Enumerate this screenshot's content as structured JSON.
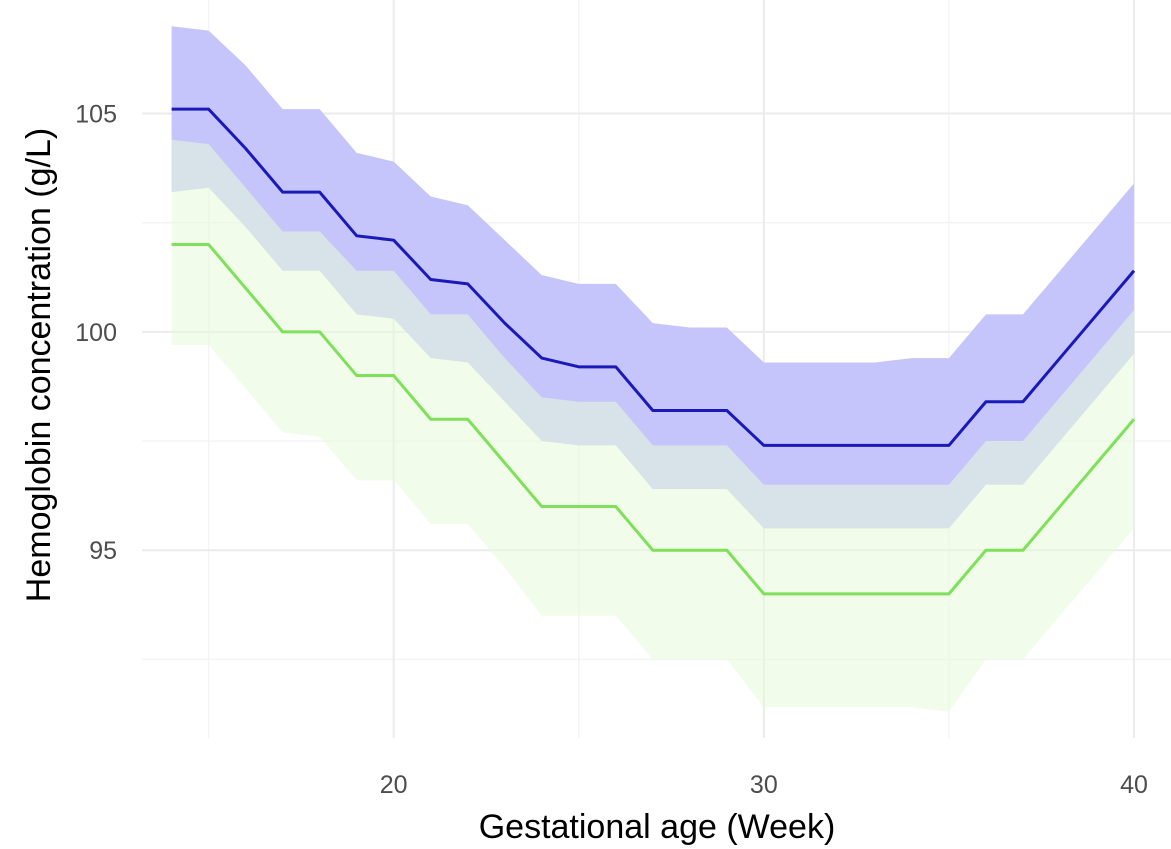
{
  "chart_data": {
    "type": "line",
    "title": "",
    "xlabel": "Gestational age (Week)",
    "ylabel": "Hemoglobin concentration (g/L)",
    "xlim": [
      13.2,
      41
    ],
    "ylim": [
      90.7,
      107.6
    ],
    "x_ticks": [
      20,
      30,
      40
    ],
    "y_ticks": [
      95,
      100,
      105
    ],
    "x_minor": [
      15,
      25,
      35
    ],
    "y_minor": [
      92.5,
      97.5,
      102.5
    ],
    "grid": true,
    "legend": "none",
    "x": [
      14,
      15,
      16,
      17,
      18,
      19,
      20,
      21,
      22,
      23,
      24,
      25,
      26,
      27,
      28,
      29,
      30,
      31,
      32,
      33,
      34,
      35,
      36,
      37,
      38,
      39,
      40
    ],
    "series": [
      {
        "color": "#1a1ab8",
        "band_color": "#c5c5fb",
        "values": [
          105.1,
          105.1,
          104.2,
          103.2,
          103.2,
          102.2,
          102.1,
          101.2,
          101.1,
          100.2,
          99.4,
          99.2,
          99.2,
          98.2,
          98.2,
          98.2,
          97.4,
          97.4,
          97.4,
          97.4,
          97.4,
          97.4,
          98.4,
          98.4,
          99.4,
          100.4,
          101.4
        ],
        "lower": [
          103.2,
          103.3,
          102.4,
          101.4,
          101.4,
          100.4,
          100.3,
          99.4,
          99.3,
          98.4,
          97.5,
          97.4,
          97.4,
          96.4,
          96.4,
          96.4,
          95.5,
          95.5,
          95.5,
          95.5,
          95.5,
          95.5,
          96.5,
          96.5,
          97.5,
          98.5,
          99.5
        ],
        "upper": [
          107.0,
          106.9,
          106.1,
          105.1,
          105.1,
          104.1,
          103.9,
          103.1,
          102.9,
          102.1,
          101.3,
          101.1,
          101.1,
          100.2,
          100.1,
          100.1,
          99.3,
          99.3,
          99.3,
          99.3,
          99.4,
          99.4,
          100.4,
          100.4,
          101.4,
          102.4,
          103.4
        ]
      },
      {
        "color": "#7fe05a",
        "band_color": "#e6fbd9",
        "values": [
          102.0,
          102.0,
          101.0,
          100.0,
          100.0,
          99.0,
          99.0,
          98.0,
          98.0,
          97.0,
          96.0,
          96.0,
          96.0,
          95.0,
          95.0,
          95.0,
          94.0,
          94.0,
          94.0,
          94.0,
          94.0,
          94.0,
          95.0,
          95.0,
          96.0,
          97.0,
          98.0
        ],
        "lower": [
          99.7,
          99.7,
          98.7,
          97.7,
          97.6,
          96.6,
          96.6,
          95.6,
          95.6,
          94.6,
          93.5,
          93.5,
          93.5,
          92.5,
          92.5,
          92.5,
          91.4,
          91.4,
          91.4,
          91.4,
          91.4,
          91.3,
          92.5,
          92.5,
          93.5,
          94.5,
          95.5
        ],
        "upper": [
          104.4,
          104.3,
          103.3,
          102.3,
          102.3,
          101.4,
          101.4,
          100.4,
          100.4,
          99.4,
          98.5,
          98.4,
          98.4,
          97.4,
          97.4,
          97.4,
          96.5,
          96.5,
          96.5,
          96.5,
          96.5,
          96.5,
          97.5,
          97.5,
          98.5,
          99.5,
          100.5
        ]
      }
    ]
  }
}
